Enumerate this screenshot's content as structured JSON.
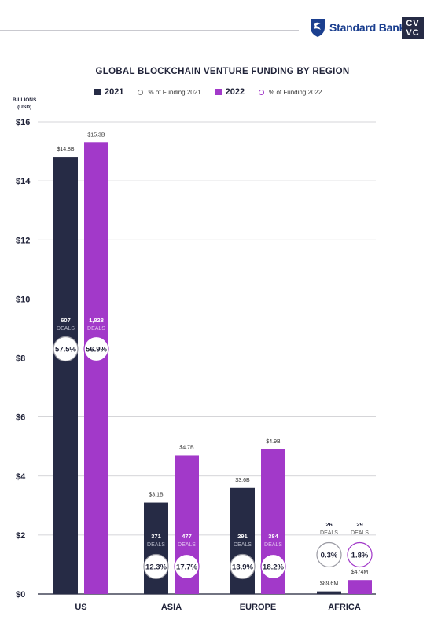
{
  "branding": {
    "standard_bank": "Standard Bank",
    "cvvc_line1": "CV",
    "cvvc_line2": "VC"
  },
  "legend": {
    "y2021": "2021",
    "pct2021": "% of Funding 2021",
    "y2022": "2022",
    "pct2022": "% of Funding 2022"
  },
  "unit_label": {
    "line1": "BILLIONS",
    "line2": "(USD)"
  },
  "chart_data": {
    "type": "bar",
    "title": "GLOBAL BLOCKCHAIN VENTURE FUNDING BY REGION",
    "ylabel": "BILLIONS (USD)",
    "ylim": [
      0,
      16
    ],
    "yticks": [
      0,
      2,
      4,
      6,
      8,
      10,
      12,
      14,
      16
    ],
    "ytick_labels": [
      "$0",
      "$2",
      "$4",
      "$6",
      "$8",
      "$10",
      "$12",
      "$14",
      "$16"
    ],
    "grid": true,
    "legend_position": "top",
    "categories": [
      "US",
      "ASIA",
      "EUROPE",
      "AFRICA"
    ],
    "series": [
      {
        "name": "2021",
        "color": "#262b45",
        "values": [
          14.8,
          3.1,
          3.6,
          0.0896
        ],
        "value_labels": [
          "$14.8B",
          "$3.1B",
          "$3.6B",
          "$89.6M"
        ],
        "deals": [
          "607",
          "371",
          "291",
          "26"
        ],
        "pct_funding": [
          "57.5%",
          "12.3%",
          "13.9%",
          "0.3%"
        ]
      },
      {
        "name": "2022",
        "color": "#a239c9",
        "values": [
          15.3,
          4.7,
          4.9,
          0.474
        ],
        "value_labels": [
          "$15.3B",
          "$4.7B",
          "$4.9B",
          "$474M"
        ],
        "deals": [
          "1,828",
          "477",
          "384",
          "29"
        ],
        "pct_funding": [
          "56.9%",
          "17.7%",
          "18.2%",
          "1.8%"
        ]
      }
    ],
    "deals_word": "DEALS"
  }
}
